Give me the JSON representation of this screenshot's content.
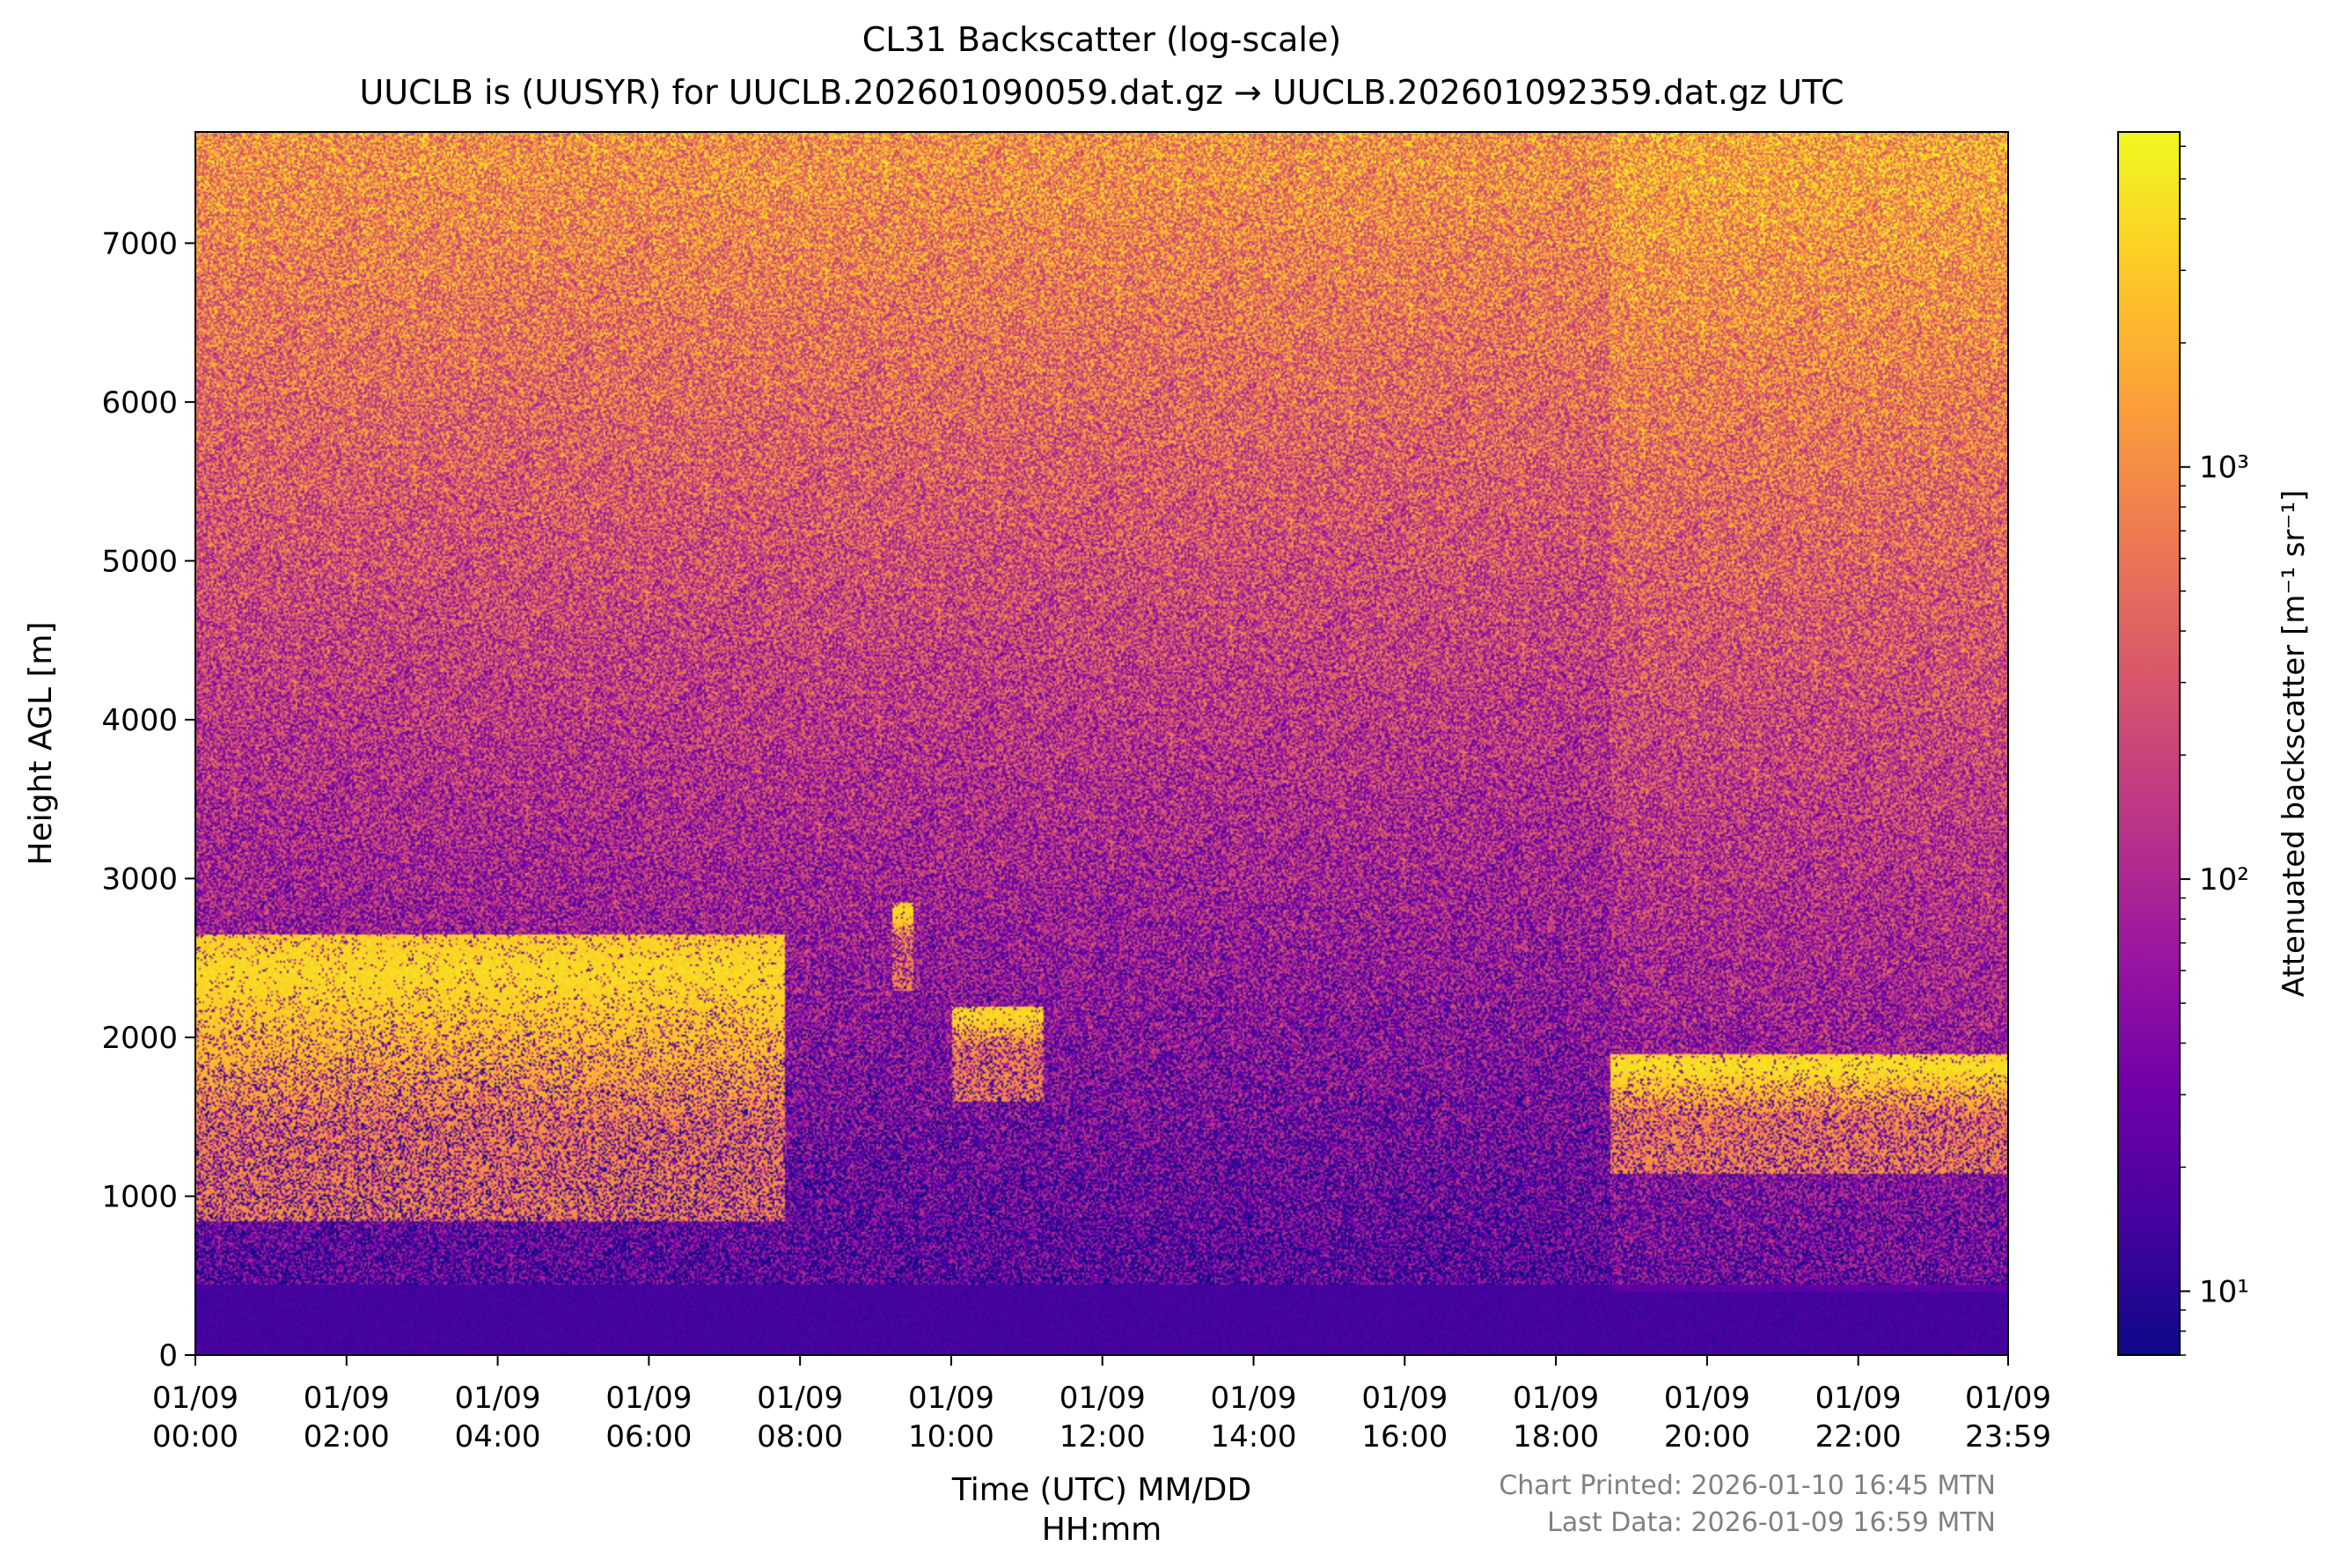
{
  "chart_data": {
    "type": "heatmap",
    "title": "CL31 Backscatter (log-scale)",
    "subtitle": "UUCLB is (UUSYR) for UUCLB.202601090059.dat.gz → UUCLB.202601092359.dat.gz UTC",
    "xlabel_line1": "Time (UTC) MM/DD",
    "xlabel_line2": "HH:mm",
    "ylabel": "Height AGL [m]",
    "colorbar_label": "Attenuated backscatter [m⁻¹ sr⁻¹]",
    "colormap": "plasma",
    "colormap_stops": [
      "#0d0887",
      "#46039f",
      "#7201a8",
      "#9c179e",
      "#bd3786",
      "#d8576b",
      "#ed7953",
      "#fb9f3a",
      "#fdca26",
      "#f0f921"
    ],
    "log_color_scale": true,
    "color_range": [
      7,
      6500
    ],
    "colorbar_ticks": [
      {
        "value": 10,
        "label": "10¹"
      },
      {
        "value": 100,
        "label": "10²"
      },
      {
        "value": 1000,
        "label": "10³"
      }
    ],
    "x_range_hours": [
      0,
      23.983
    ],
    "y_range_m": [
      0,
      7700
    ],
    "x_ticks": [
      {
        "hour": 0,
        "date": "01/09",
        "time": "00:00"
      },
      {
        "hour": 2,
        "date": "01/09",
        "time": "02:00"
      },
      {
        "hour": 4,
        "date": "01/09",
        "time": "04:00"
      },
      {
        "hour": 6,
        "date": "01/09",
        "time": "06:00"
      },
      {
        "hour": 8,
        "date": "01/09",
        "time": "08:00"
      },
      {
        "hour": 10,
        "date": "01/09",
        "time": "10:00"
      },
      {
        "hour": 12,
        "date": "01/09",
        "time": "12:00"
      },
      {
        "hour": 14,
        "date": "01/09",
        "time": "14:00"
      },
      {
        "hour": 16,
        "date": "01/09",
        "time": "16:00"
      },
      {
        "hour": 18,
        "date": "01/09",
        "time": "18:00"
      },
      {
        "hour": 20,
        "date": "01/09",
        "time": "20:00"
      },
      {
        "hour": 22,
        "date": "01/09",
        "time": "22:00"
      },
      {
        "hour": 23.983,
        "date": "01/09",
        "time": "23:59"
      }
    ],
    "y_ticks": [
      0,
      1000,
      2000,
      3000,
      4000,
      5000,
      6000,
      7000
    ],
    "cloud_layers": [
      {
        "start_hour": 0.0,
        "end_hour": 7.8,
        "base_m": 1100,
        "top_m": 2650,
        "peak": 5000
      },
      {
        "start_hour": 9.2,
        "end_hour": 9.5,
        "base_m": 2550,
        "top_m": 2850,
        "peak": 5000
      },
      {
        "start_hour": 10.0,
        "end_hour": 11.2,
        "base_m": 1850,
        "top_m": 2200,
        "peak": 5000
      },
      {
        "start_hour": 18.7,
        "end_hour": 24.0,
        "base_m": 1400,
        "top_m": 1900,
        "peak": 5500
      }
    ],
    "grid": false
  },
  "footer": {
    "printed": "Chart Printed: 2026-01-10 16:45 MTN",
    "last_data": "Last Data: 2026-01-09 16:59 MTN"
  }
}
